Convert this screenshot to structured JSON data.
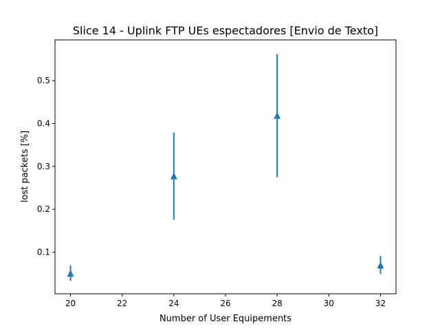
{
  "chart_data": {
    "type": "scatter",
    "title": "Slice 14 - Uplink FTP UEs espectadores [Envio de Texto]",
    "xlabel": "Number of User Equipements",
    "ylabel": "lost packets [%]",
    "xlim": [
      19.4,
      32.6
    ],
    "ylim": [
      0.003,
      0.595
    ],
    "xticks": [
      20,
      22,
      24,
      26,
      28,
      30,
      32
    ],
    "yticks": [
      0.1,
      0.2,
      0.3,
      0.4,
      0.5
    ],
    "ytick_labels": [
      "0.1",
      "0.2",
      "0.3",
      "0.4",
      "0.5"
    ],
    "grid": false,
    "marker": "triangle-up",
    "color": "#1f77b4",
    "points": [
      {
        "x": 20,
        "y": 0.051,
        "err_low": 0.033,
        "err_high": 0.069
      },
      {
        "x": 24,
        "y": 0.278,
        "err_low": 0.176,
        "err_high": 0.379
      },
      {
        "x": 28,
        "y": 0.419,
        "err_low": 0.275,
        "err_high": 0.562
      },
      {
        "x": 32,
        "y": 0.07,
        "err_low": 0.049,
        "err_high": 0.091
      }
    ]
  }
}
